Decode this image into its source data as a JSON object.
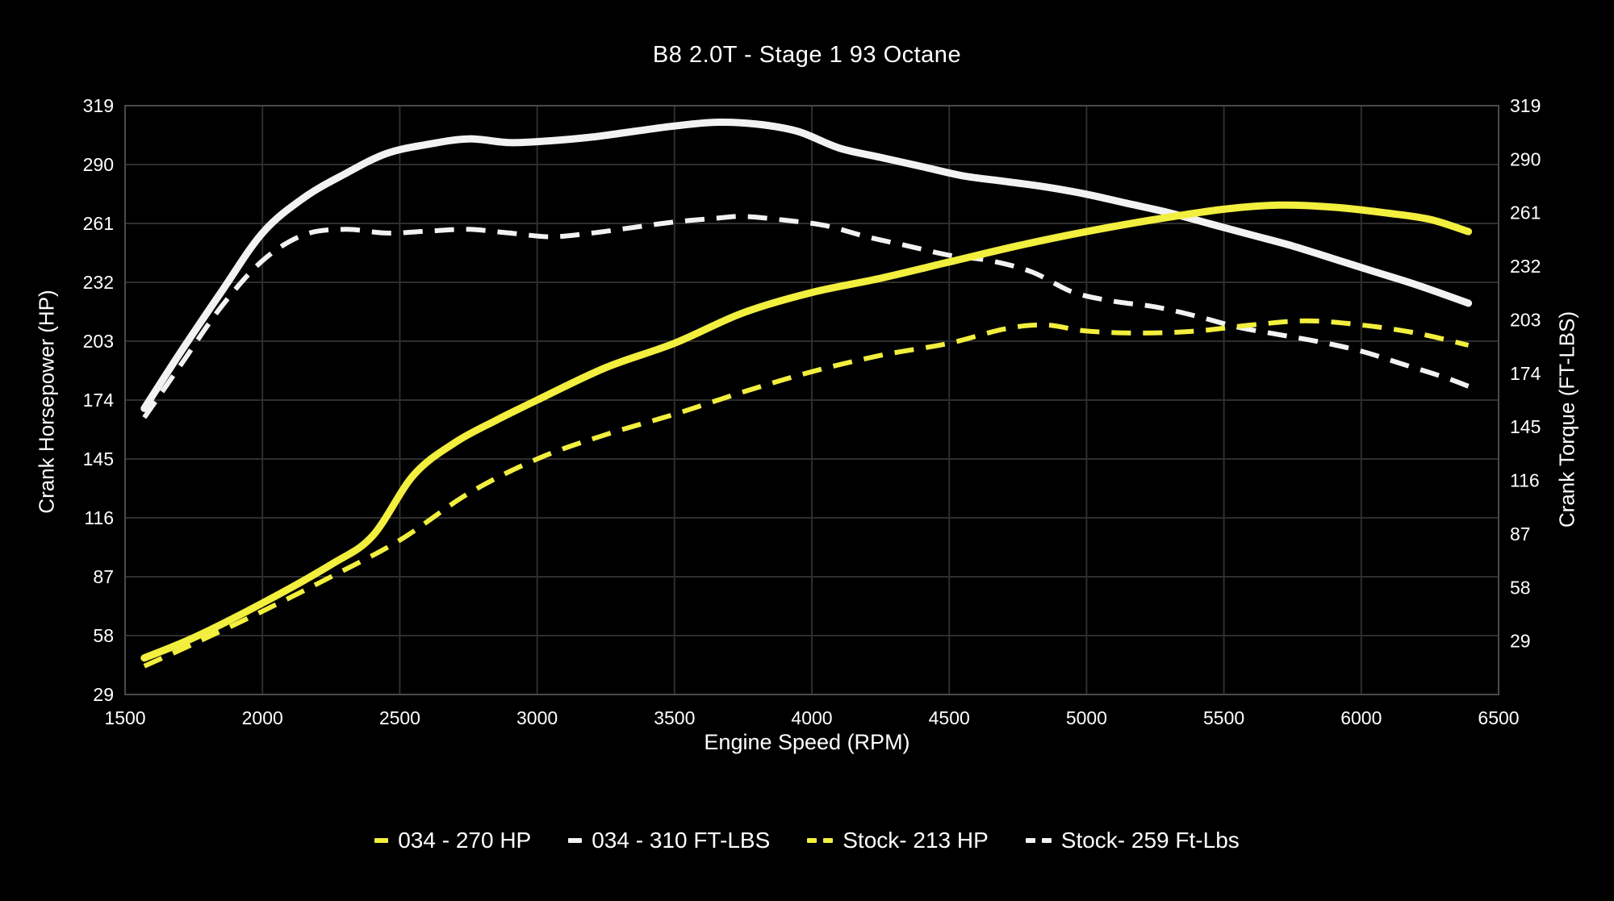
{
  "chart_data": {
    "type": "line",
    "title": "B8 2.0T - Stage 1 93 Octane",
    "xlabel": "Engine Speed (RPM)",
    "ylabel_left": "Crank Horsepower (HP)",
    "ylabel_right": "Crank Torque (FT-LBS)",
    "x_range": [
      1500,
      6500
    ],
    "left_range": [
      29,
      319
    ],
    "right_range": [
      0,
      319
    ],
    "x_ticks": [
      1500,
      2000,
      2500,
      3000,
      3500,
      4000,
      4500,
      5000,
      5500,
      6000,
      6500
    ],
    "left_ticks": [
      319,
      290,
      261,
      232,
      203,
      174,
      145,
      116,
      87,
      58,
      29
    ],
    "right_ticks": [
      319,
      290,
      261,
      232,
      203,
      174,
      145,
      116,
      87,
      58,
      29
    ],
    "grid": true,
    "legend_position": "bottom",
    "series": [
      {
        "id": "stock-tq",
        "name": "Stock- 259 Ft-Lbs",
        "axis": "right",
        "color": "#f2f2f2",
        "dash": "dashed",
        "width": 6,
        "peak": 259,
        "points": [
          [
            1570,
            150
          ],
          [
            1700,
            178
          ],
          [
            1850,
            210
          ],
          [
            2000,
            235
          ],
          [
            2150,
            249
          ],
          [
            2300,
            252
          ],
          [
            2450,
            250
          ],
          [
            2600,
            251
          ],
          [
            2750,
            252
          ],
          [
            2900,
            250
          ],
          [
            3050,
            248
          ],
          [
            3200,
            250
          ],
          [
            3350,
            253
          ],
          [
            3500,
            256
          ],
          [
            3650,
            258
          ],
          [
            3750,
            259
          ],
          [
            3900,
            257
          ],
          [
            4050,
            254
          ],
          [
            4200,
            248
          ],
          [
            4350,
            243
          ],
          [
            4500,
            238
          ],
          [
            4650,
            235
          ],
          [
            4800,
            229
          ],
          [
            4950,
            218
          ],
          [
            5100,
            213
          ],
          [
            5250,
            210
          ],
          [
            5400,
            205
          ],
          [
            5550,
            199
          ],
          [
            5700,
            195
          ],
          [
            5850,
            191
          ],
          [
            6000,
            186
          ],
          [
            6150,
            179
          ],
          [
            6300,
            172
          ],
          [
            6390,
            167
          ]
        ]
      },
      {
        "id": "stock-hp",
        "name": "Stock- 213 HP",
        "axis": "left",
        "color": "#f2ef3e",
        "dash": "dashed",
        "width": 6,
        "peak": 213,
        "points": [
          [
            1570,
            43
          ],
          [
            1750,
            54
          ],
          [
            2000,
            70
          ],
          [
            2250,
            87
          ],
          [
            2500,
            105
          ],
          [
            2750,
            128
          ],
          [
            3000,
            145
          ],
          [
            3250,
            157
          ],
          [
            3500,
            167
          ],
          [
            3750,
            178
          ],
          [
            4000,
            188
          ],
          [
            4250,
            196
          ],
          [
            4500,
            202
          ],
          [
            4700,
            209
          ],
          [
            4850,
            211
          ],
          [
            5000,
            208
          ],
          [
            5200,
            207
          ],
          [
            5400,
            208
          ],
          [
            5600,
            211
          ],
          [
            5800,
            213
          ],
          [
            6000,
            211
          ],
          [
            6200,
            207
          ],
          [
            6390,
            201
          ]
        ]
      },
      {
        "id": "034-tq",
        "name": "034 - 310 FT-LBS",
        "axis": "right",
        "color": "#f2f2f2",
        "dash": "solid",
        "width": 9,
        "peak": 310,
        "points": [
          [
            1570,
            155
          ],
          [
            1700,
            185
          ],
          [
            1850,
            218
          ],
          [
            2000,
            250
          ],
          [
            2150,
            269
          ],
          [
            2300,
            282
          ],
          [
            2450,
            293
          ],
          [
            2600,
            298
          ],
          [
            2750,
            301
          ],
          [
            2900,
            299
          ],
          [
            3050,
            300
          ],
          [
            3200,
            302
          ],
          [
            3350,
            305
          ],
          [
            3500,
            308
          ],
          [
            3650,
            310
          ],
          [
            3800,
            309
          ],
          [
            3950,
            305
          ],
          [
            4100,
            296
          ],
          [
            4250,
            291
          ],
          [
            4400,
            286
          ],
          [
            4550,
            281
          ],
          [
            4700,
            278
          ],
          [
            4850,
            275
          ],
          [
            5000,
            271
          ],
          [
            5150,
            266
          ],
          [
            5300,
            261
          ],
          [
            5450,
            255
          ],
          [
            5600,
            249
          ],
          [
            5750,
            243
          ],
          [
            5900,
            236
          ],
          [
            6050,
            229
          ],
          [
            6200,
            222
          ],
          [
            6390,
            212
          ]
        ]
      },
      {
        "id": "034-hp",
        "name": "034 - 270 HP",
        "axis": "left",
        "color": "#f2ef3e",
        "dash": "solid",
        "width": 9,
        "peak": 270,
        "points": [
          [
            1570,
            47
          ],
          [
            1750,
            57
          ],
          [
            2000,
            74
          ],
          [
            2250,
            93
          ],
          [
            2400,
            107
          ],
          [
            2550,
            137
          ],
          [
            2700,
            153
          ],
          [
            2850,
            164
          ],
          [
            3000,
            174
          ],
          [
            3250,
            190
          ],
          [
            3500,
            202
          ],
          [
            3750,
            217
          ],
          [
            4000,
            227
          ],
          [
            4250,
            234
          ],
          [
            4500,
            242
          ],
          [
            4750,
            250
          ],
          [
            5000,
            257
          ],
          [
            5250,
            263
          ],
          [
            5500,
            268
          ],
          [
            5700,
            270
          ],
          [
            5900,
            269
          ],
          [
            6100,
            266
          ],
          [
            6250,
            263
          ],
          [
            6390,
            257
          ]
        ]
      }
    ],
    "legend_order": [
      "034-hp",
      "034-tq",
      "stock-hp",
      "stock-tq"
    ]
  },
  "colors": {
    "background": "#000000",
    "text": "#ffffff",
    "grid": "#2e2e2e",
    "border": "#4a4a4a",
    "yellow": "#f2ef3e",
    "white": "#f2f2f2"
  }
}
